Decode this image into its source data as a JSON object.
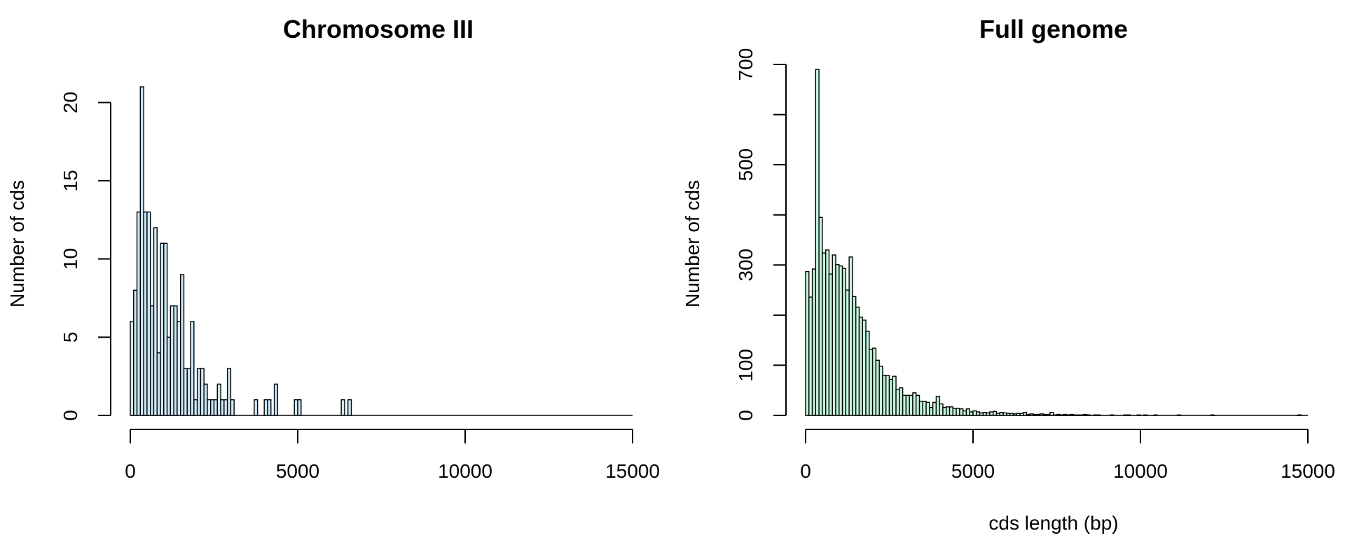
{
  "chart_data": [
    {
      "type": "histogram",
      "title": "Chromosome III",
      "xlabel": "",
      "ylabel": "Number of cds",
      "xlim": [
        0,
        15000
      ],
      "ylim": [
        0,
        21
      ],
      "xticks": [
        "0",
        "5000",
        "10000",
        "15000"
      ],
      "yticks": [
        "0",
        "5",
        "10",
        "15",
        "20"
      ],
      "bin_width": 100,
      "fill_color": "#cde8f8",
      "counts": [
        6,
        8,
        13,
        21,
        13,
        13,
        7,
        12,
        4,
        11,
        11,
        5,
        7,
        7,
        6,
        9,
        3,
        3,
        6,
        1,
        3,
        3,
        2,
        1,
        1,
        1,
        2,
        1,
        1,
        3,
        1,
        0,
        0,
        0,
        0,
        0,
        0,
        1,
        0,
        0,
        1,
        1,
        0,
        2,
        0,
        0,
        0,
        0,
        0,
        1,
        1,
        0,
        0,
        0,
        0,
        0,
        0,
        0,
        0,
        0,
        0,
        0,
        0,
        1,
        0,
        1,
        0,
        0,
        0,
        0,
        0,
        0,
        0,
        0,
        0,
        0,
        0,
        0,
        0,
        0,
        0,
        0,
        0,
        0,
        0,
        0,
        0,
        0,
        0,
        0,
        0,
        0,
        0,
        0,
        0,
        0,
        0,
        0,
        0,
        0,
        0,
        0,
        0,
        0,
        0,
        0,
        0,
        0,
        0,
        0,
        0,
        0,
        0,
        0,
        0,
        0,
        0,
        0,
        0,
        0,
        0,
        0,
        0,
        0,
        0,
        0,
        0,
        0,
        0,
        0,
        0,
        0,
        0,
        0,
        0,
        0,
        0,
        0,
        0,
        0,
        0,
        0,
        0,
        0,
        0,
        0,
        0,
        0
      ]
    },
    {
      "type": "histogram",
      "title": "Full genome",
      "xlabel": "cds length (bp)",
      "ylabel": "Number of cds",
      "xlim": [
        0,
        15000
      ],
      "ylim": [
        0,
        700
      ],
      "xticks": [
        "0",
        "5000",
        "10000",
        "15000"
      ],
      "yticks": [
        "0",
        "100",
        "300",
        "500",
        "700"
      ],
      "bin_width": 100,
      "fill_color": "#c4f5dc",
      "counts": [
        287,
        236,
        292,
        690,
        395,
        324,
        330,
        282,
        320,
        301,
        298,
        293,
        250,
        316,
        237,
        216,
        196,
        190,
        168,
        132,
        134,
        110,
        98,
        80,
        80,
        72,
        78,
        52,
        55,
        40,
        40,
        40,
        45,
        40,
        28,
        28,
        26,
        16,
        26,
        38,
        23,
        16,
        17,
        17,
        14,
        14,
        13,
        9,
        13,
        7,
        9,
        7,
        5,
        6,
        5,
        7,
        8,
        4,
        6,
        5,
        4,
        4,
        3,
        4,
        4,
        6,
        2,
        3,
        2,
        2,
        3,
        2,
        2,
        6,
        1,
        2,
        1,
        2,
        1,
        2,
        1,
        1,
        1,
        2,
        1,
        0,
        1,
        1,
        0,
        0,
        0,
        1,
        0,
        0,
        0,
        1,
        1,
        0,
        0,
        1,
        0,
        1,
        0,
        0,
        1,
        0,
        0,
        0,
        0,
        0,
        0,
        1,
        0,
        0,
        0,
        0,
        0,
        0,
        0,
        0,
        0,
        1,
        0,
        0,
        0,
        0,
        0,
        0,
        0,
        0,
        0,
        0,
        0,
        0,
        0,
        0,
        0,
        0,
        0,
        0,
        0,
        0,
        0,
        0,
        0,
        0,
        0,
        1
      ]
    }
  ]
}
